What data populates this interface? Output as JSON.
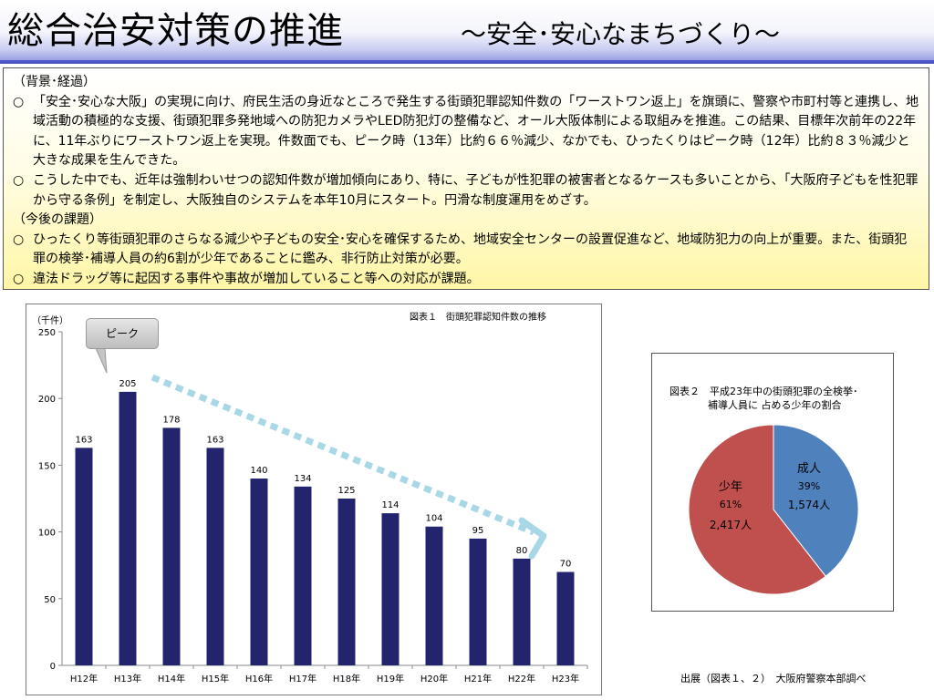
{
  "header": {
    "title": "総合治安対策の推進",
    "subtitle": "～安全･安心なまちづくり～"
  },
  "background_box": {
    "heading_background": "（背景･経過）",
    "background_items": [
      "「安全･安心な大阪」の実現に向け、府民生活の身近なところで発生する街頭犯罪認知件数の「ワーストワン返上」を旗頭に、警察や市町村等と連携し、地域活動の積極的な支援、街頭犯罪多発地域への防犯カメラやLED防犯灯の整備など、オール大阪体制による取組みを推進。この結果、目標年次前年の22年に、11年ぶりにワーストワン返上を実現。件数面でも、ピーク時（13年）比約６６％減少、なかでも、ひったくりはピーク時（12年）比約８３％減少と大きな成果を生んできた。",
      "こうした中でも、近年は強制わいせつの認知件数が増加傾向にあり、特に、子どもが性犯罪の被害者となるケースも多いことから、「大阪府子どもを性犯罪から守る条例」を制定し、大阪独自のシステムを本年10月にスタート。円滑な制度運用をめざす。"
    ],
    "heading_future": "（今後の課題）",
    "future_items": [
      "ひったくり等街頭犯罪のさらなる減少や子どもの安全･安心を確保するため、地域安全センターの設置促進など、地域防犯力の向上が重要。また、街頭犯罪の検挙･補導人員の約6割が少年であることに鑑み、非行防止対策が必要。",
      "違法ドラッグ等に起因する事件や事故が増加していること等への対応が課題。"
    ],
    "bullet": "○"
  },
  "peak_label": "ピーク",
  "source_note": "出展（図表１、２）　大阪府警察本部調べ",
  "colors": {
    "bar": "#23246e",
    "arrow": "#a8d8e6",
    "pie_adult": "#4f81bd",
    "pie_youth": "#c0504d"
  },
  "chart_data": [
    {
      "type": "bar",
      "title": "図表１　街頭犯罪認知件数の推移",
      "unit_label": "（千件）",
      "categories": [
        "H12年",
        "H13年",
        "H14年",
        "H15年",
        "H16年",
        "H17年",
        "H18年",
        "H19年",
        "H20年",
        "H21年",
        "H22年",
        "H23年"
      ],
      "values": [
        163,
        205,
        178,
        163,
        140,
        134,
        125,
        114,
        104,
        95,
        80,
        70
      ],
      "ylim": [
        0,
        250
      ],
      "yticks": [
        0,
        50,
        100,
        150,
        200,
        250
      ],
      "grid": false,
      "data_labels": true
    },
    {
      "type": "pie",
      "title_line1": "図表２　平成23年中の街頭犯罪の全検挙･",
      "title_line2": "補導人員に 占める少年の割合",
      "slices": [
        {
          "label": "成人",
          "percent": "39%",
          "count": "1,574人",
          "value": 1574
        },
        {
          "label": "少年",
          "percent": "61%",
          "count": "2,417人",
          "value": 2417
        }
      ]
    }
  ]
}
